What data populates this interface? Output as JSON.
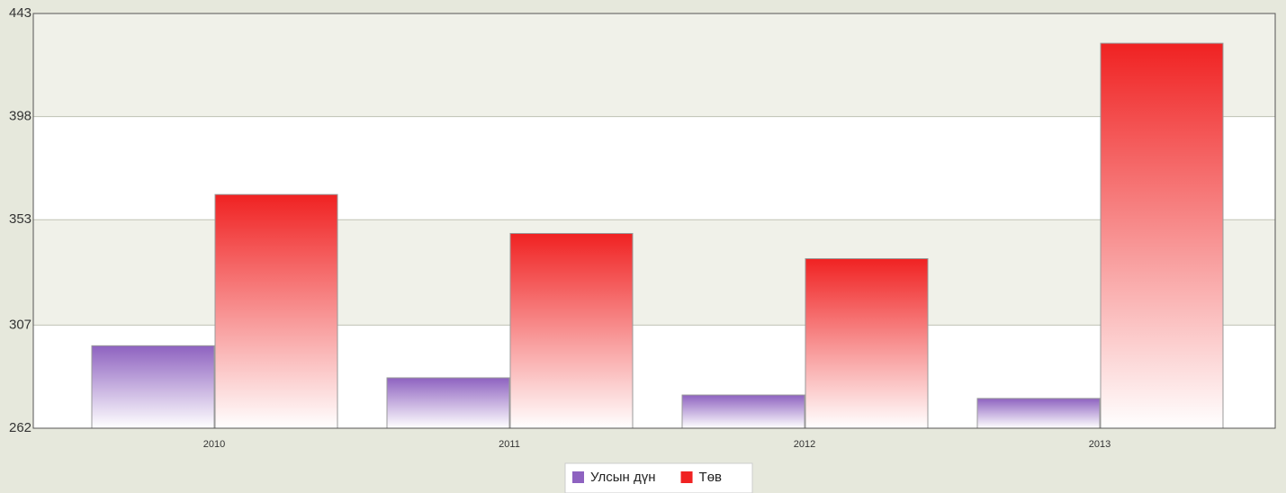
{
  "chart_data": {
    "type": "bar",
    "categories": [
      "2010",
      "2011",
      "2012",
      "2013"
    ],
    "series": [
      {
        "name": "Улсын дүн",
        "color": "#8e62c0",
        "values": [
          298,
          284,
          276.5,
          275
        ]
      },
      {
        "name": "Төв",
        "color": "#f02222",
        "values": [
          364,
          347,
          336,
          430
        ]
      }
    ],
    "ylim": [
      262,
      443
    ],
    "yticks": [
      262,
      307,
      353,
      398,
      443
    ],
    "grid": true,
    "legend": "bottom"
  }
}
